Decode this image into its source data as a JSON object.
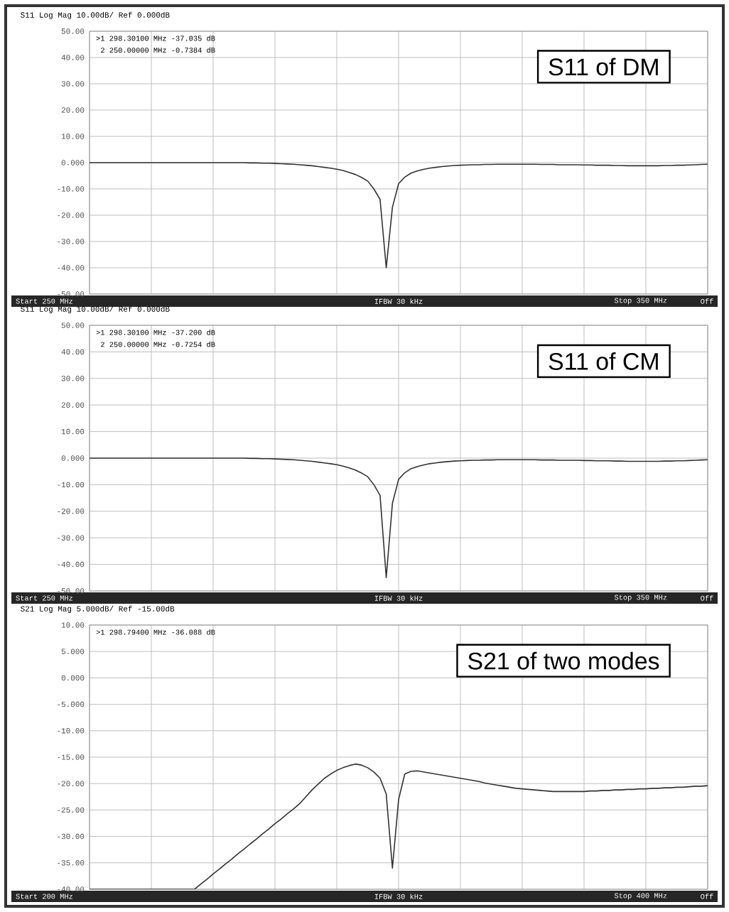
{
  "chart_data": [
    {
      "type": "line",
      "title": "S11 Log Mag 10.00dB/ Ref 0.000dB",
      "color": "#333333",
      "grid": true,
      "tick_labels": "y",
      "ylim": [
        -50,
        50
      ],
      "yticks": [
        {
          "value": 50,
          "label": "50.00"
        },
        {
          "value": 40,
          "label": "40.00"
        },
        {
          "value": 30,
          "label": "30.00"
        },
        {
          "value": 20,
          "label": "20.00"
        },
        {
          "value": 10,
          "label": "10.00"
        },
        {
          "value": 0,
          "label": "0.000"
        },
        {
          "value": -10,
          "label": "-10.00"
        },
        {
          "value": -20,
          "label": "-20.00"
        },
        {
          "value": -30,
          "label": "-30.00"
        },
        {
          "value": -40,
          "label": "-40.00"
        },
        {
          "value": -50,
          "label": "-50.00"
        }
      ],
      "categories": [
        null,
        null,
        null,
        null,
        null,
        null,
        null,
        null,
        null,
        null,
        null,
        null,
        null,
        null,
        null,
        null,
        null,
        null,
        null,
        null,
        null,
        null,
        null,
        null,
        null,
        null,
        null,
        null,
        null,
        null,
        null,
        null,
        null,
        null,
        null,
        null,
        null,
        null,
        null,
        null,
        null,
        null,
        null,
        null,
        null,
        null,
        null,
        null,
        null,
        null,
        null,
        null,
        null,
        null,
        null,
        null,
        null,
        null,
        null,
        null,
        null,
        null,
        null,
        null,
        null,
        null,
        null,
        null,
        null,
        null,
        null,
        null,
        null,
        null,
        null,
        null,
        null,
        null,
        null,
        null,
        null,
        null,
        null,
        null,
        null,
        null,
        null,
        null,
        null,
        null,
        null,
        null,
        null,
        null,
        null,
        null,
        null,
        null,
        null,
        null,
        null
      ],
      "values": [
        0,
        0,
        0,
        0,
        0,
        0,
        0,
        0,
        0,
        0,
        0,
        0,
        0,
        0,
        0,
        0,
        0,
        0,
        0,
        0,
        0,
        0,
        0,
        0,
        0,
        0,
        -0.1,
        -0.1,
        -0.2,
        -0.2,
        -0.3,
        -0.4,
        -0.5,
        -0.6,
        -0.8,
        -1.0,
        -1.2,
        -1.5,
        -1.8,
        -2.1,
        -2.5,
        -3.0,
        -3.7,
        -4.5,
        -5.6,
        -7.0,
        -10,
        -14,
        -40,
        -17,
        -8,
        -5.5,
        -4,
        -3.2,
        -2.6,
        -2.1,
        -1.8,
        -1.5,
        -1.3,
        -1.1,
        -1.0,
        -0.9,
        -0.8,
        -0.8,
        -0.7,
        -0.7,
        -0.6,
        -0.6,
        -0.6,
        -0.6,
        -0.6,
        -0.6,
        -0.6,
        -0.7,
        -0.7,
        -0.7,
        -0.8,
        -0.8,
        -0.8,
        -0.8,
        -0.9,
        -0.9,
        -1.0,
        -1.0,
        -1.0,
        -1.1,
        -1.1,
        -1.2,
        -1.2,
        -1.2,
        -1.2,
        -1.2,
        -1.2,
        -1.1,
        -1.1,
        -1.0,
        -1.0,
        -0.9,
        -0.8,
        -0.7,
        -0.6
      ],
      "annotations": [
        "S11 of DM",
        "Start 250 MHz",
        "IFBW 30 kHz",
        "Stop 350 MHz",
        "Off",
        ">1  298.30100 MHz  -37.035 dB",
        " 2  250.00000 MHz  -0.7384 dB"
      ]
    },
    {
      "type": "line",
      "title": "S11 Log Mag 10.00dB/ Ref 0.000dB",
      "color": "#333333",
      "grid": true,
      "tick_labels": "y",
      "ylim": [
        -50,
        50
      ],
      "yticks": [
        {
          "value": 50,
          "label": "50.00"
        },
        {
          "value": 40,
          "label": "40.00"
        },
        {
          "value": 30,
          "label": "30.00"
        },
        {
          "value": 20,
          "label": "20.00"
        },
        {
          "value": 10,
          "label": "10.00"
        },
        {
          "value": 0,
          "label": "0.000"
        },
        {
          "value": -10,
          "label": "-10.00"
        },
        {
          "value": -20,
          "label": "-20.00"
        },
        {
          "value": -30,
          "label": "-30.00"
        },
        {
          "value": -40,
          "label": "-40.00"
        },
        {
          "value": -50,
          "label": "-50.00"
        }
      ],
      "categories": [
        null,
        null,
        null,
        null,
        null,
        null,
        null,
        null,
        null,
        null,
        null,
        null,
        null,
        null,
        null,
        null,
        null,
        null,
        null,
        null,
        null,
        null,
        null,
        null,
        null,
        null,
        null,
        null,
        null,
        null,
        null,
        null,
        null,
        null,
        null,
        null,
        null,
        null,
        null,
        null,
        null,
        null,
        null,
        null,
        null,
        null,
        null,
        null,
        null,
        null,
        null,
        null,
        null,
        null,
        null,
        null,
        null,
        null,
        null,
        null,
        null,
        null,
        null,
        null,
        null,
        null,
        null,
        null,
        null,
        null,
        null,
        null,
        null,
        null,
        null,
        null,
        null,
        null,
        null,
        null,
        null,
        null,
        null,
        null,
        null,
        null,
        null,
        null,
        null,
        null,
        null,
        null,
        null,
        null,
        null,
        null,
        null,
        null,
        null,
        null,
        null
      ],
      "values": [
        0,
        0,
        0,
        0,
        0,
        0,
        0,
        0,
        0,
        0,
        0,
        0,
        0,
        0,
        0,
        0,
        0,
        0,
        0,
        0,
        0,
        0,
        0,
        0,
        0,
        0,
        -0.1,
        -0.1,
        -0.2,
        -0.2,
        -0.3,
        -0.4,
        -0.5,
        -0.6,
        -0.8,
        -1.0,
        -1.2,
        -1.5,
        -1.8,
        -2.1,
        -2.5,
        -3.0,
        -3.7,
        -4.5,
        -5.6,
        -7.0,
        -10,
        -14,
        -45,
        -17,
        -8,
        -5.5,
        -4,
        -3.2,
        -2.6,
        -2.1,
        -1.8,
        -1.5,
        -1.3,
        -1.1,
        -1.0,
        -0.9,
        -0.8,
        -0.8,
        -0.7,
        -0.7,
        -0.6,
        -0.6,
        -0.6,
        -0.6,
        -0.6,
        -0.6,
        -0.6,
        -0.7,
        -0.7,
        -0.7,
        -0.8,
        -0.8,
        -0.8,
        -0.8,
        -0.9,
        -0.9,
        -1.0,
        -1.0,
        -1.0,
        -1.1,
        -1.1,
        -1.2,
        -1.2,
        -1.2,
        -1.2,
        -1.2,
        -1.2,
        -1.1,
        -1.1,
        -1.0,
        -1.0,
        -0.9,
        -0.8,
        -0.7,
        -0.6
      ],
      "annotations": [
        "S11 of CM",
        "Start 250 MHz",
        "IFBW 30 kHz",
        "Stop 350 MHz",
        "Off",
        ">1  298.30100 MHz  -37.200 dB",
        " 2  250.00000 MHz  -0.7254 dB"
      ]
    },
    {
      "type": "line",
      "title": "S21 Log Mag 5.000dB/ Ref -15.00dB",
      "color": "#333333",
      "grid": true,
      "tick_labels": "y",
      "ylim": [
        -40,
        10
      ],
      "yticks": [
        {
          "value": 10,
          "label": "10.00"
        },
        {
          "value": 5,
          "label": "5.000"
        },
        {
          "value": 0,
          "label": "0.000"
        },
        {
          "value": -5,
          "label": "-5.000"
        },
        {
          "value": -10,
          "label": "-10.00"
        },
        {
          "value": -15,
          "label": "-15.00"
        },
        {
          "value": -20,
          "label": "-20.00"
        },
        {
          "value": -25,
          "label": "-25.00"
        },
        {
          "value": -30,
          "label": "-30.00"
        },
        {
          "value": -35,
          "label": "-35.00"
        },
        {
          "value": -40,
          "label": "-40.00"
        }
      ],
      "categories": [
        null,
        null,
        null,
        null,
        null,
        null,
        null,
        null,
        null,
        null,
        null,
        null,
        null,
        null,
        null,
        null,
        null,
        null,
        null,
        null,
        null,
        null,
        null,
        null,
        null,
        null,
        null,
        null,
        null,
        null,
        null,
        null,
        null,
        null,
        null,
        null,
        null,
        null,
        null,
        null,
        null,
        null,
        null,
        null,
        null,
        null,
        null,
        null,
        null,
        null,
        null,
        null,
        null,
        null,
        null,
        null,
        null,
        null,
        null,
        null,
        null,
        null,
        null,
        null,
        null,
        null,
        null,
        null,
        null,
        null,
        null,
        null,
        null,
        null,
        null,
        null,
        null,
        null,
        null,
        null,
        null,
        null,
        null,
        null,
        null,
        null,
        null,
        null,
        null,
        null,
        null,
        null,
        null,
        null,
        null,
        null,
        null,
        null,
        null,
        null,
        null
      ],
      "values": [
        -40,
        -40,
        -40,
        -40,
        -40,
        -40,
        -40,
        -40,
        -40,
        -40,
        -40,
        -40,
        -40,
        -40,
        -40,
        -40,
        -40,
        -40,
        -39.0,
        -38.1,
        -37.1,
        -36.2,
        -35.2,
        -34.3,
        -33.3,
        -32.4,
        -31.4,
        -30.5,
        -29.5,
        -28.6,
        -27.6,
        -26.7,
        -25.7,
        -24.8,
        -23.8,
        -22.5,
        -21.2,
        -20.1,
        -19.0,
        -18.2,
        -17.5,
        -17.0,
        -16.6,
        -16.3,
        -16.5,
        -17.0,
        -17.8,
        -19.0,
        -22,
        -36,
        -23,
        -18.2,
        -17.7,
        -17.6,
        -17.8,
        -18.0,
        -18.2,
        -18.4,
        -18.6,
        -18.8,
        -19.0,
        -19.2,
        -19.4,
        -19.6,
        -19.9,
        -20.1,
        -20.3,
        -20.5,
        -20.7,
        -20.9,
        -21.0,
        -21.1,
        -21.2,
        -21.3,
        -21.4,
        -21.5,
        -21.5,
        -21.5,
        -21.5,
        -21.5,
        -21.5,
        -21.4,
        -21.4,
        -21.3,
        -21.3,
        -21.2,
        -21.2,
        -21.1,
        -21.1,
        -21.0,
        -21.0,
        -20.9,
        -20.9,
        -20.8,
        -20.8,
        -20.7,
        -20.7,
        -20.6,
        -20.5,
        -20.5,
        -20.4
      ],
      "annotations": [
        "S21 of two modes",
        "Start 200 MHz",
        "IFBW 30 kHz",
        "Stop 400 MHz",
        "Off",
        ">1  298.79400 MHz  -36.088 dB"
      ]
    }
  ]
}
